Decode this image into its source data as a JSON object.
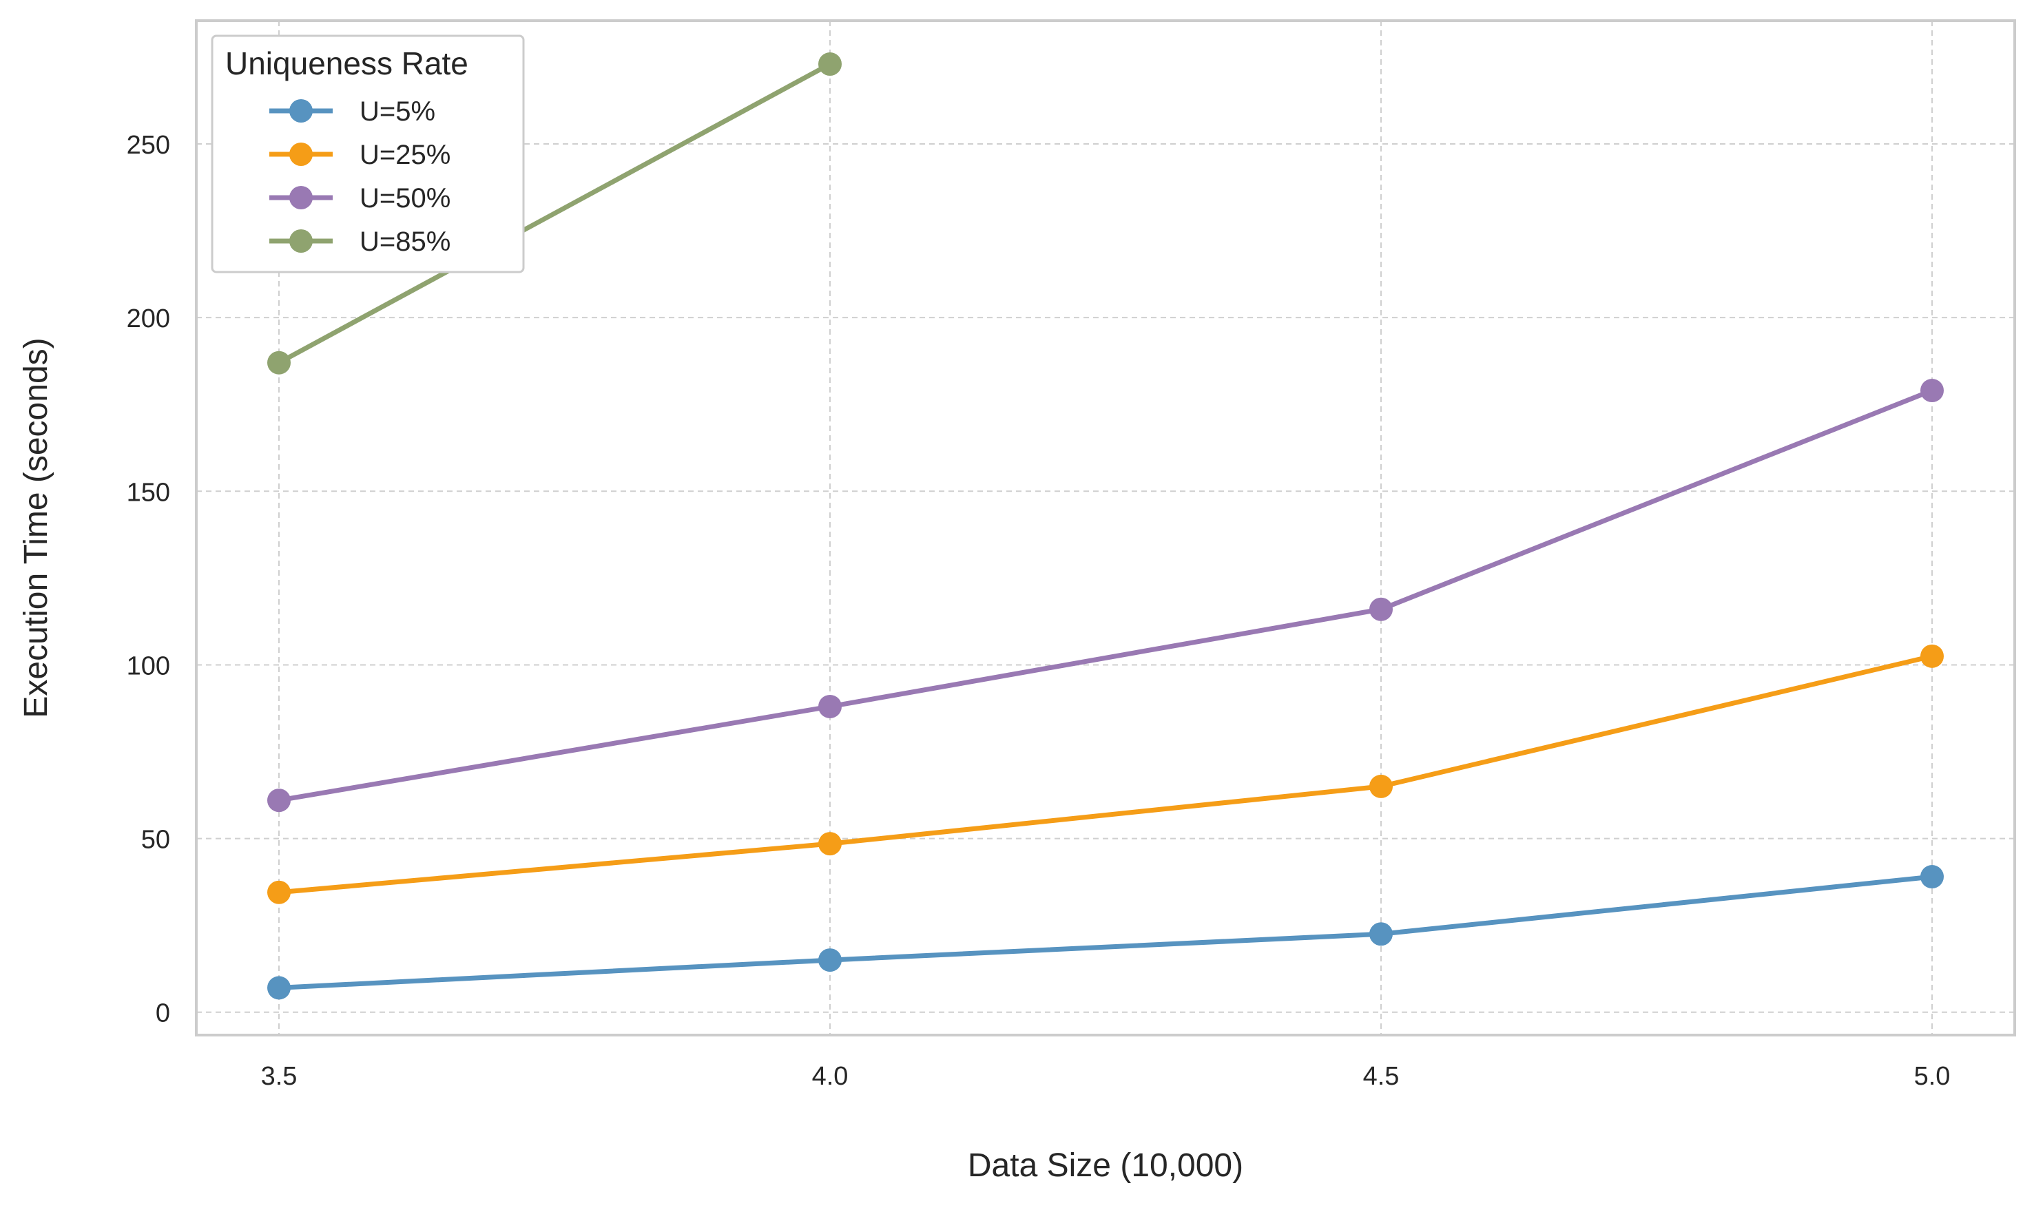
{
  "chart_data": {
    "type": "line",
    "title": "",
    "xlabel": "Data Size (10,000)",
    "ylabel": "Execution Time (seconds)",
    "x": [
      3.5,
      4.0,
      4.5,
      5.0
    ],
    "x_tick_labels": [
      "3.5",
      "4.0",
      "4.5",
      "5.0"
    ],
    "y_ticks": [
      0,
      50,
      100,
      150,
      200,
      250
    ],
    "y_tick_labels": [
      "0",
      "50",
      "100",
      "150",
      "200",
      "250"
    ],
    "xlim": [
      3.425,
      5.075
    ],
    "ylim": [
      -6.6,
      285.5
    ],
    "grid": true,
    "legend": {
      "title": "Uniqueness Rate",
      "placement": "top-left"
    },
    "series": [
      {
        "name": "U=5%",
        "color": "#5793c0",
        "x": [
          3.5,
          4.0,
          4.5,
          5.0
        ],
        "values": [
          7,
          15,
          22.5,
          39
        ]
      },
      {
        "name": "U=25%",
        "color": "#f59d17",
        "x": [
          3.5,
          4.0,
          4.5,
          5.0
        ],
        "values": [
          34.5,
          48.5,
          65,
          102.5
        ]
      },
      {
        "name": "U=50%",
        "color": "#9979b3",
        "x": [
          3.5,
          4.0,
          4.5,
          5.0
        ],
        "values": [
          61,
          88,
          116,
          179
        ]
      },
      {
        "name": "U=85%",
        "color": "#8fa36f",
        "x": [
          3.5,
          4.0
        ],
        "values": [
          187,
          273
        ]
      }
    ]
  }
}
